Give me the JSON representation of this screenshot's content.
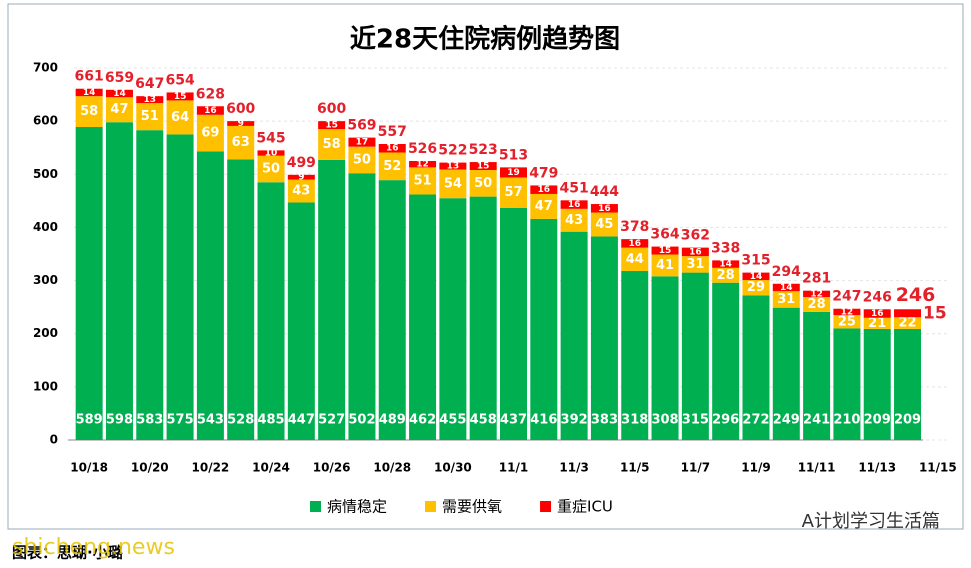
{
  "chart_data": {
    "type": "bar",
    "stacked": true,
    "title": "近28天住院病例趋势图",
    "categories": [
      "10/18",
      null,
      "10/20",
      null,
      "10/22",
      null,
      "10/24",
      null,
      "10/26",
      null,
      "10/28",
      null,
      "10/30",
      null,
      "11/1",
      null,
      "11/3",
      null,
      "11/5",
      null,
      "11/7",
      null,
      "11/9",
      null,
      "11/11",
      null,
      "11/13",
      null,
      "11/15"
    ],
    "series": [
      {
        "name": "病情稳定",
        "color": "#00b050",
        "values": [
          589,
          598,
          583,
          575,
          543,
          528,
          485,
          447,
          527,
          502,
          489,
          462,
          455,
          458,
          437,
          416,
          392,
          383,
          318,
          308,
          315,
          296,
          272,
          249,
          241,
          210,
          209,
          209,
          null
        ]
      },
      {
        "name": "需要供氧",
        "color": "#ffc000",
        "values": [
          58,
          47,
          51,
          64,
          69,
          63,
          50,
          43,
          58,
          50,
          52,
          51,
          54,
          50,
          57,
          47,
          43,
          45,
          44,
          41,
          31,
          28,
          29,
          31,
          28,
          25,
          21,
          22,
          null
        ]
      },
      {
        "name": "重症ICU",
        "color": "#ff0000",
        "values": [
          14,
          14,
          13,
          15,
          16,
          9,
          10,
          9,
          15,
          17,
          16,
          12,
          13,
          15,
          19,
          16,
          16,
          16,
          16,
          15,
          16,
          14,
          14,
          14,
          12,
          12,
          16,
          15,
          null
        ]
      }
    ],
    "totals": [
      661,
      659,
      647,
      654,
      628,
      600,
      545,
      499,
      600,
      569,
      557,
      526,
      522,
      523,
      513,
      479,
      451,
      444,
      378,
      364,
      362,
      338,
      315,
      294,
      281,
      247,
      246,
      246,
      null
    ],
    "ylim": [
      0,
      700
    ],
    "yticks": [
      0,
      100,
      200,
      300,
      400,
      500,
      600,
      700
    ],
    "grid": true,
    "legend": "bottom"
  },
  "footer": {
    "credit": "图表：思瑚·小璐",
    "source": "A计划学习生活篇",
    "watermark": "shicheng.news"
  }
}
